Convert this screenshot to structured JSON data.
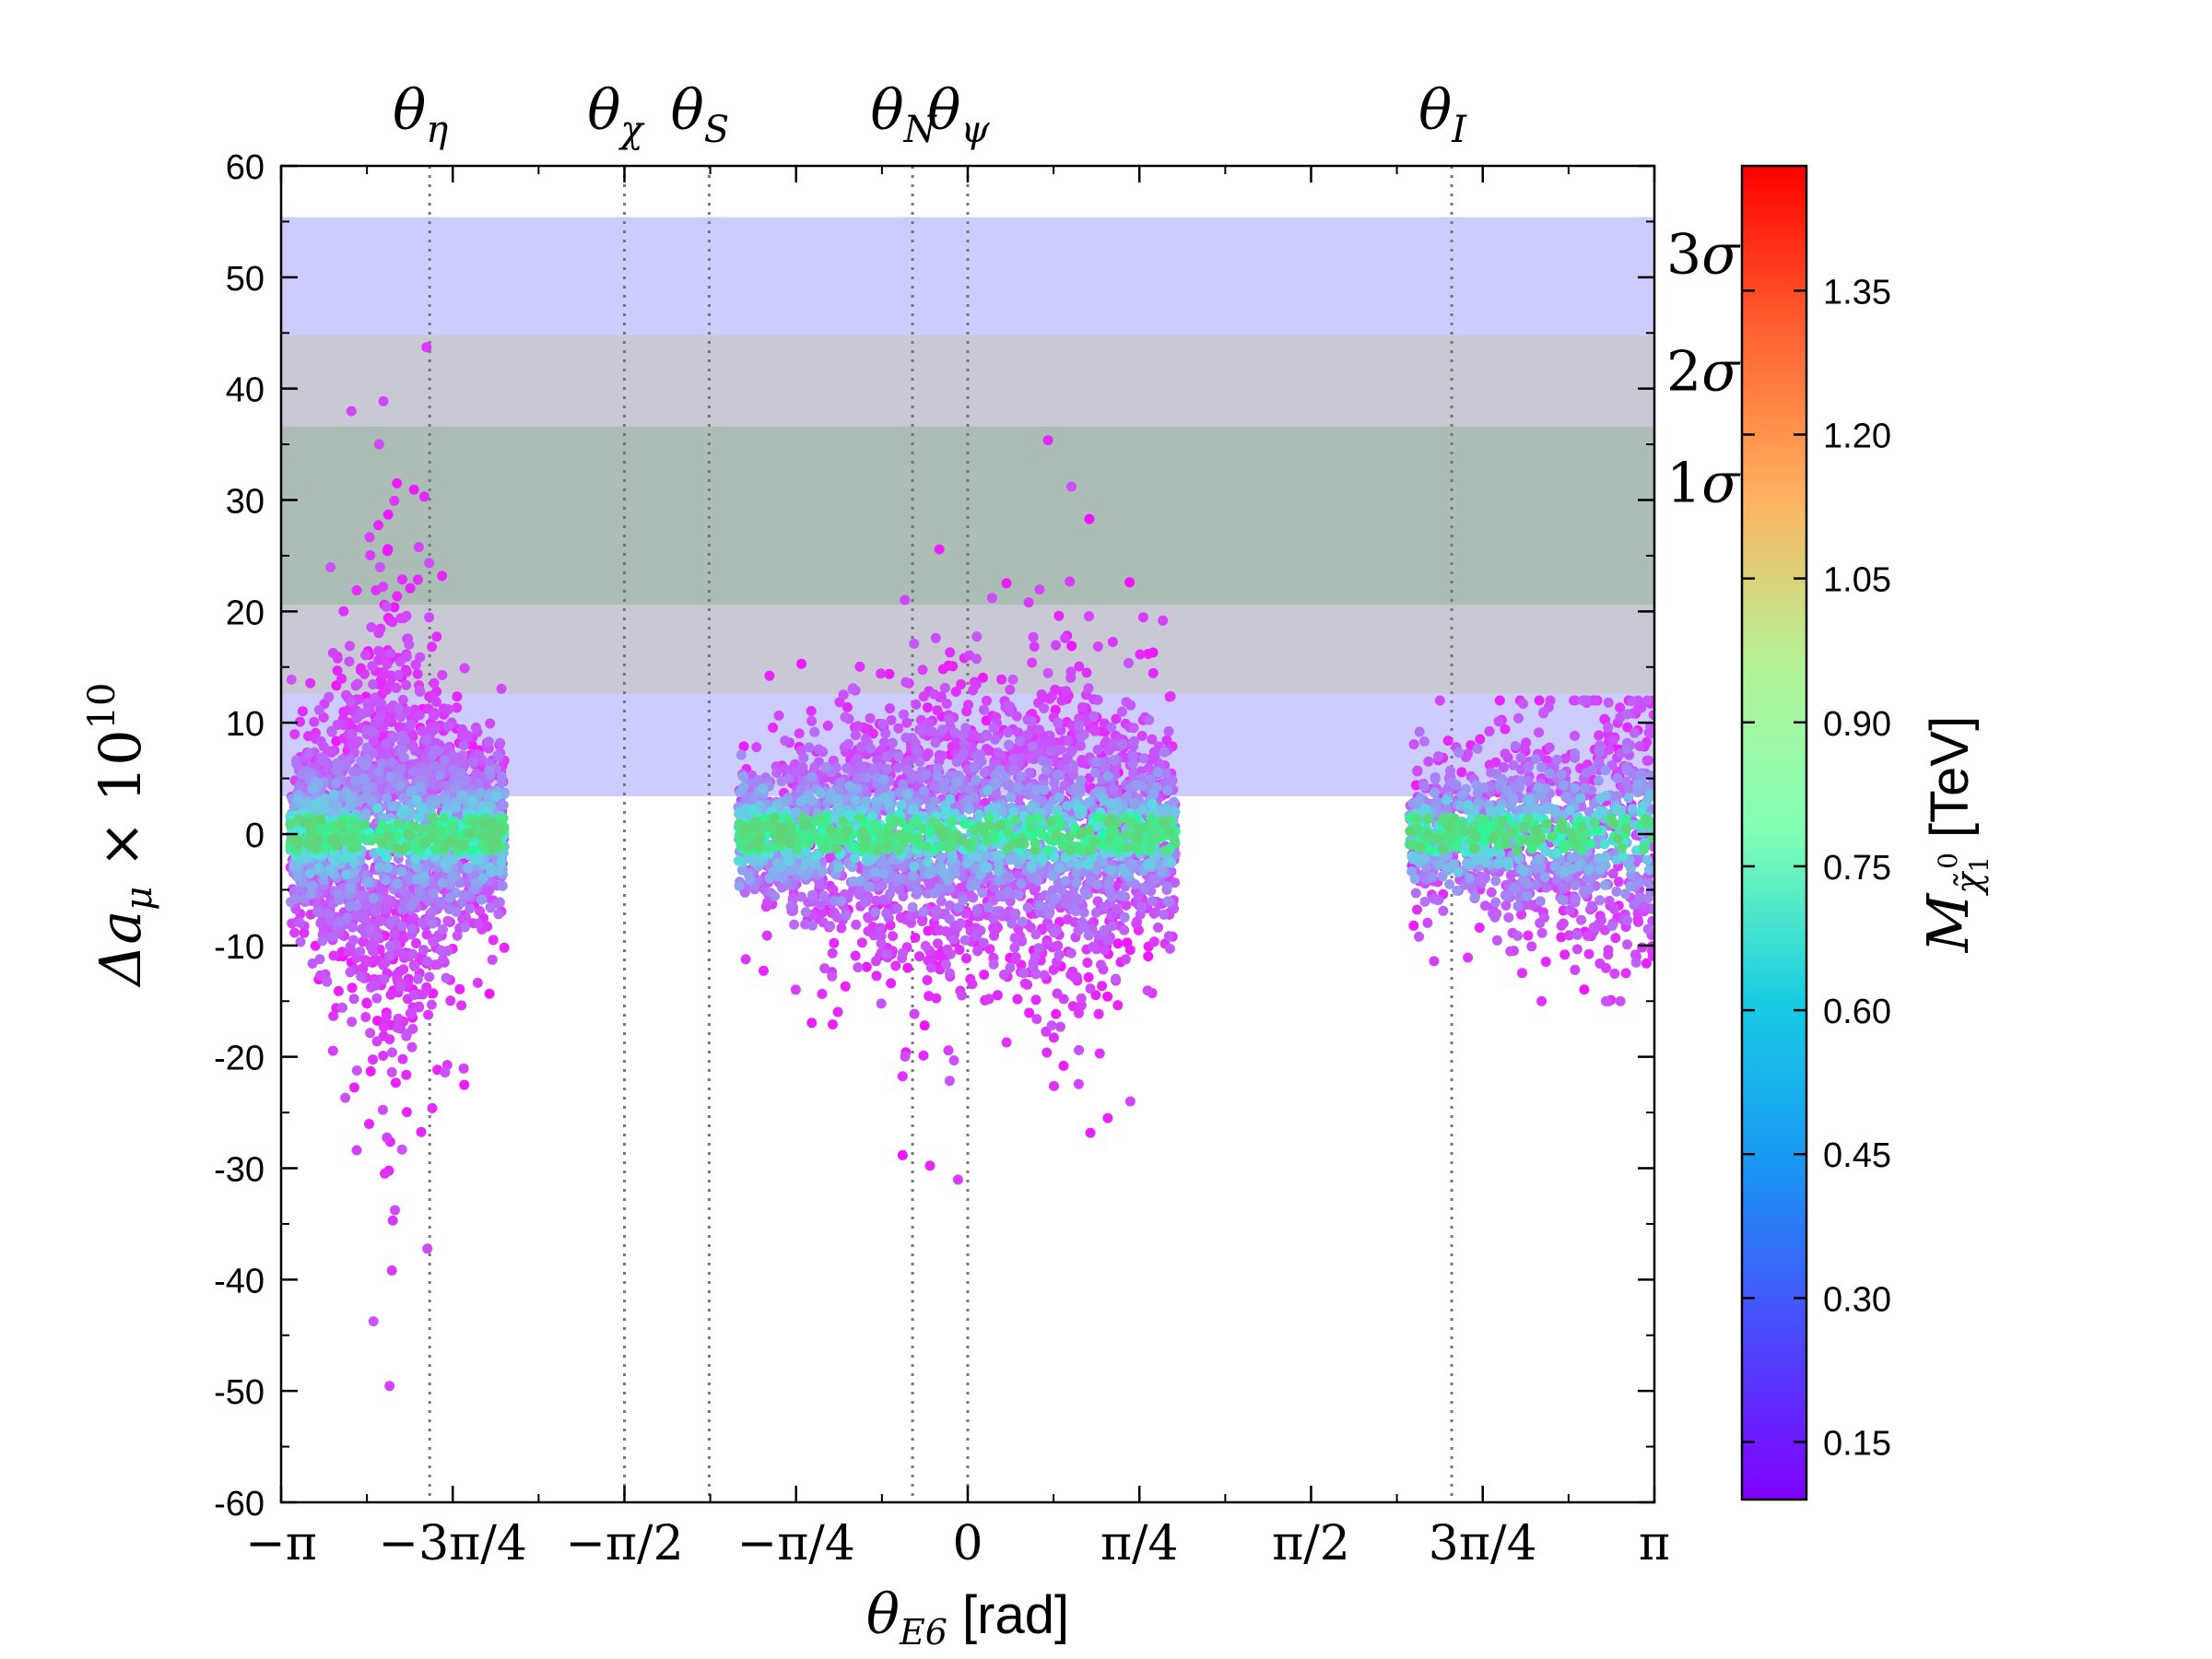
{
  "chart_data": {
    "type": "scatter",
    "xlabel": {
      "main": "θ",
      "sub": "E6",
      "unit": " [rad]"
    },
    "ylabel": {
      "main": "Δa",
      "sub": "μ",
      "times": " × 10",
      "exp": "10"
    },
    "xlim": [
      -3.14159,
      3.14159
    ],
    "ylim": [
      -60,
      60
    ],
    "x_ticks": [
      {
        "value": -3.14159,
        "label": "−π"
      },
      {
        "value": -2.35619,
        "label": "−3π/4"
      },
      {
        "value": -1.5708,
        "label": "−π/2"
      },
      {
        "value": -0.7854,
        "label": "−π/4"
      },
      {
        "value": 0,
        "label": "0"
      },
      {
        "value": 0.7854,
        "label": "π/4"
      },
      {
        "value": 1.5708,
        "label": "π/2"
      },
      {
        "value": 2.35619,
        "label": "3π/4"
      },
      {
        "value": 3.14159,
        "label": "π"
      }
    ],
    "y_ticks": [
      {
        "value": 60,
        "label": "60"
      },
      {
        "value": 50,
        "label": "50"
      },
      {
        "value": 40,
        "label": "40"
      },
      {
        "value": 30,
        "label": "30"
      },
      {
        "value": 20,
        "label": "20"
      },
      {
        "value": 10,
        "label": "10"
      },
      {
        "value": 0,
        "label": "0"
      },
      {
        "value": -10,
        "label": "-10"
      },
      {
        "value": -20,
        "label": "-20"
      },
      {
        "value": -30,
        "label": "-30"
      },
      {
        "value": -40,
        "label": "-40"
      },
      {
        "value": -50,
        "label": "-50"
      },
      {
        "value": -60,
        "label": "-60"
      }
    ],
    "bands": [
      {
        "name": "3σ",
        "label_main": "3",
        "label_sym": "σ",
        "ymin": 3.4,
        "ymax": 55.4,
        "color": "#ccccff"
      },
      {
        "name": "2σ",
        "label_main": "2",
        "label_sym": "σ",
        "ymin": 12.6,
        "ymax": 44.8,
        "color": "#c9c9d6"
      },
      {
        "name": "1σ",
        "label_main": "1",
        "label_sym": "σ",
        "ymin": 20.6,
        "ymax": 36.6,
        "color": "#abbdb5"
      }
    ],
    "reference_lines": [
      {
        "name": "θη",
        "label_main": "θ",
        "label_sub": "η",
        "x": -2.4619
      },
      {
        "name": "θχ",
        "label_main": "θ",
        "label_sub": "χ",
        "x": -1.5708
      },
      {
        "name": "θS",
        "label_main": "θ",
        "label_sub": "S",
        "x": -1.1832
      },
      {
        "name": "θN",
        "label_main": "θ",
        "label_sub": "N",
        "x": -0.2527
      },
      {
        "name": "θψ",
        "label_main": "θ",
        "label_sub": "ψ",
        "x": 0
      },
      {
        "name": "θI",
        "label_main": "θ",
        "label_sub": "I",
        "x": 2.2143
      }
    ],
    "series": [
      {
        "name": "cluster-left",
        "x_range": [
          -3.1,
          -2.12
        ],
        "center_x": -2.65,
        "y_core": [
          -14,
          12
        ],
        "y_tail": [
          -57,
          51
        ],
        "n": 2600
      },
      {
        "name": "cluster-middle",
        "x_range": [
          -1.05,
          0.95
        ],
        "center_x": 0.36,
        "y_core": [
          -8,
          8
        ],
        "y_tail": [
          -51,
          48
        ],
        "n": 3400
      },
      {
        "name": "cluster-right",
        "x_range": [
          2.02,
          3.14
        ],
        "center_x": 3.0,
        "y_core": [
          -4,
          5
        ],
        "y_tail": [
          -15,
          12
        ],
        "n": 1300
      }
    ],
    "colorbar": {
      "label_main": "M",
      "label_sub": "χ̃",
      "label_sub2": "1",
      "label_sup": "0",
      "unit": " [TeV]",
      "vmin": 0.09,
      "vmax": 1.48,
      "colormap": "rainbow",
      "ticks": [
        {
          "value": 0.15,
          "label": "0.15"
        },
        {
          "value": 0.3,
          "label": "0.30"
        },
        {
          "value": 0.45,
          "label": "0.45"
        },
        {
          "value": 0.6,
          "label": "0.60"
        },
        {
          "value": 0.75,
          "label": "0.75"
        },
        {
          "value": 0.9,
          "label": "0.90"
        },
        {
          "value": 1.05,
          "label": "1.05"
        },
        {
          "value": 1.2,
          "label": "1.20"
        },
        {
          "value": 1.35,
          "label": "1.35"
        }
      ]
    }
  }
}
